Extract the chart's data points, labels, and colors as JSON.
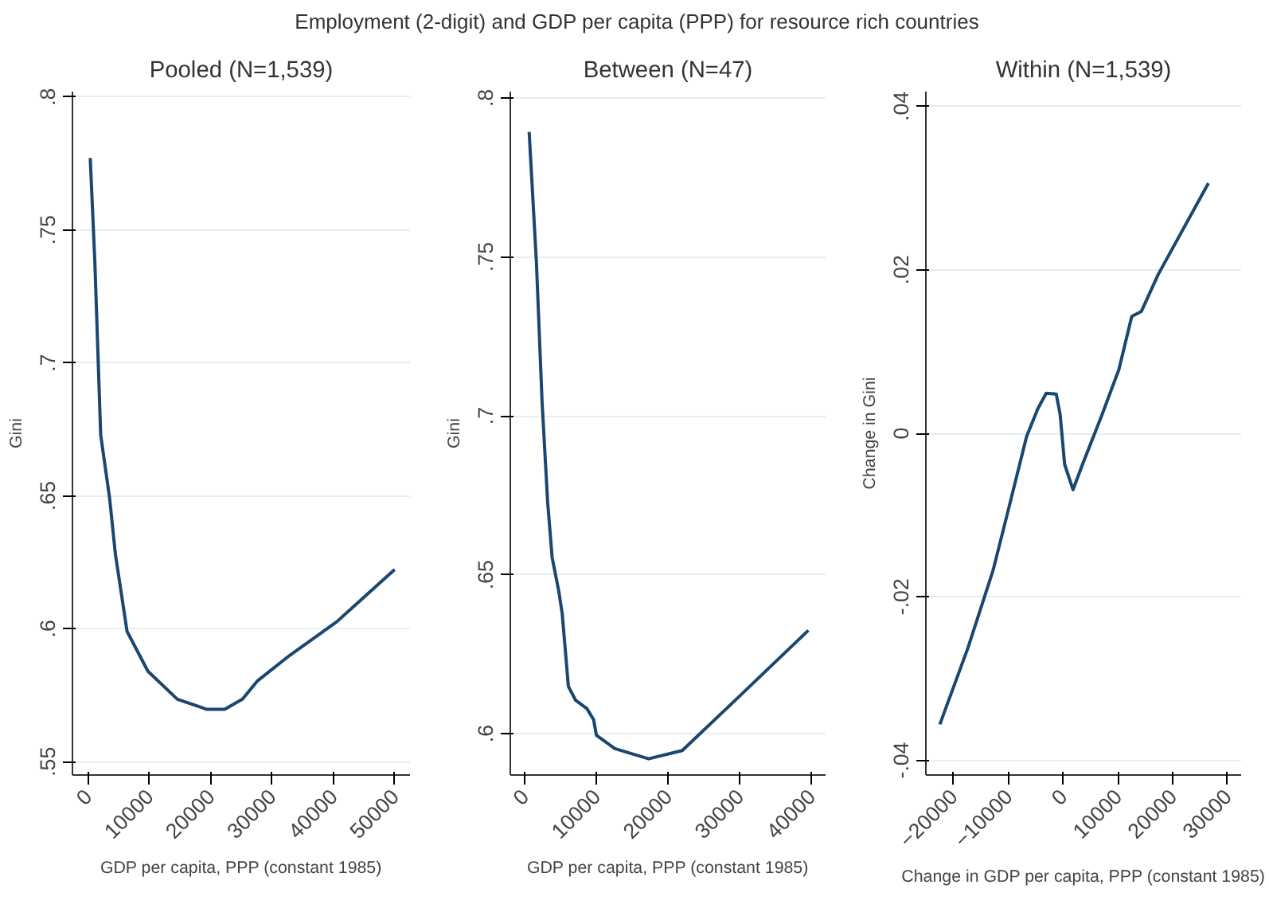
{
  "chart_data": [
    {
      "type": "line",
      "title": "Employment (2-digit) and GDP per capita (PPP) for resource rich countries",
      "subtitle": "Pooled (N=1,539)",
      "xlabel": "GDP per capita, PPP (constant 1985)",
      "ylabel": "Gini",
      "series": [
        {
          "color": "#1a476f",
          "x": [
            400,
            1150,
            2100,
            3560,
            4500,
            6400,
            9800,
            14600,
            19400,
            22300,
            25200,
            27600,
            32900,
            40600,
            50000
          ],
          "values": [
            0.777,
            0.738,
            0.673,
            0.649,
            0.628,
            0.599,
            0.584,
            0.5735,
            0.5697,
            0.5697,
            0.5735,
            0.5803,
            0.59,
            0.6027,
            0.6223
          ]
        }
      ],
      "xlim": [
        -2500,
        52500
      ],
      "ylim": [
        0.545,
        0.802
      ],
      "xticks": [
        0,
        10000,
        20000,
        30000,
        40000,
        50000
      ],
      "yticks": [
        {
          "value": 0.55,
          "label": ".55"
        },
        {
          "value": 0.6,
          "label": ".6"
        },
        {
          "value": 0.65,
          "label": ".65"
        },
        {
          "value": 0.7,
          "label": ".7"
        },
        {
          "value": 0.75,
          "label": ".75"
        },
        {
          "value": 0.8,
          "label": ".8"
        }
      ],
      "grid": "y",
      "line_style": "solid",
      "marker": "none"
    },
    {
      "type": "line",
      "title": "Between (N=47)",
      "xlabel": "GDP per capita, PPP (constant 1985)",
      "ylabel": "Gini",
      "series": [
        {
          "color": "#1a476f",
          "x": [
            630,
            1640,
            2430,
            3210,
            3840,
            4770,
            5240,
            5710,
            6100,
            7120,
            8690,
            9630,
            10020,
            12600,
            17300,
            22000,
            29800,
            39600
          ],
          "values": [
            0.7893,
            0.7485,
            0.7046,
            0.6729,
            0.6554,
            0.6448,
            0.6378,
            0.6255,
            0.6149,
            0.6105,
            0.6079,
            0.6044,
            0.5995,
            0.5953,
            0.5921,
            0.5947,
            0.6114,
            0.6325
          ]
        }
      ],
      "xlim": [
        -2000,
        42000
      ],
      "ylim": [
        0.587,
        0.802
      ],
      "xticks": [
        0,
        10000,
        20000,
        30000,
        40000
      ],
      "yticks": [
        {
          "value": 0.6,
          "label": ".6"
        },
        {
          "value": 0.65,
          "label": ".65"
        },
        {
          "value": 0.7,
          "label": ".7"
        },
        {
          "value": 0.75,
          "label": ".75"
        },
        {
          "value": 0.8,
          "label": ".8"
        }
      ],
      "grid": "y",
      "line_style": "solid",
      "marker": "none"
    },
    {
      "type": "line",
      "title": "Within (N=1,539)",
      "xlabel": "Change in GDP per capita, PPP (constant 1985)",
      "ylabel": "Change in Gini",
      "series": [
        {
          "color": "#1a476f",
          "x": [
            -22450,
            -17350,
            -12760,
            -10200,
            -6630,
            -4590,
            -3060,
            -1220,
            -510,
            310,
            1840,
            3570,
            7140,
            10200,
            12550,
            14290,
            17350,
            26530
          ],
          "values": [
            -0.0356,
            -0.0263,
            -0.0168,
            -0.01,
            -0.0004,
            0.003,
            0.0049,
            0.0048,
            0.0023,
            -0.0038,
            -0.0069,
            -0.0038,
            0.0023,
            0.0078,
            0.0143,
            0.0149,
            0.0194,
            0.0306
          ]
        }
      ],
      "xlim": [
        -25000,
        32500
      ],
      "ylim": [
        -0.0418,
        0.0418
      ],
      "xticks": [
        -20000,
        -10000,
        0,
        10000,
        20000,
        30000
      ],
      "yticks": [
        {
          "value": -0.04,
          "label": "-.04"
        },
        {
          "value": -0.02,
          "label": "-.02"
        },
        0,
        {
          "value": 0.02,
          "label": ".02"
        },
        {
          "value": 0.04,
          "label": ".04"
        }
      ],
      "grid": "y",
      "line_style": "solid",
      "marker": "none"
    }
  ]
}
